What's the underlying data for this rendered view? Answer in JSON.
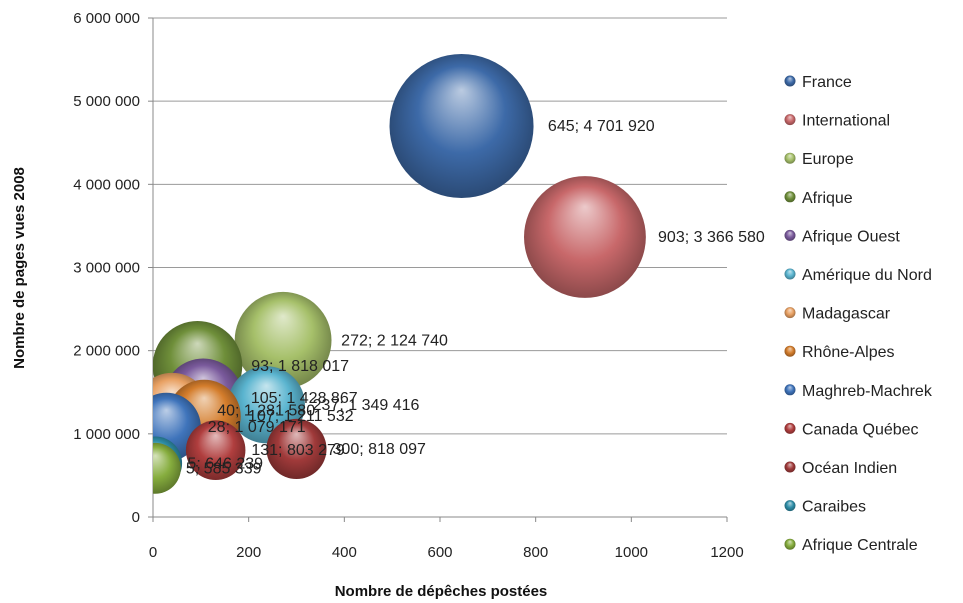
{
  "chart_data": {
    "type": "bubble",
    "xlabel": "Nombre de dépêches postées",
    "ylabel": "Nombre de pages vues 2008",
    "xlim": [
      0,
      1200
    ],
    "ylim": [
      0,
      6000000
    ],
    "x_ticks": [
      0,
      200,
      400,
      600,
      800,
      1000,
      1200
    ],
    "y_ticks": [
      0,
      1000000,
      2000000,
      3000000,
      4000000,
      5000000,
      6000000
    ],
    "x_tick_labels": [
      "0",
      "200",
      "400",
      "600",
      "800",
      "1000",
      "1200"
    ],
    "y_tick_labels": [
      "0",
      "1 000 000",
      "2 000 000",
      "3 000 000",
      "4 000 000",
      "5 000 000",
      "6 000 000"
    ],
    "grid": "horizontal",
    "legend": "right",
    "series": [
      {
        "name": "France",
        "x": 645,
        "y": 4701920,
        "label": "645; 4 701 920",
        "color": "#3d6aa8"
      },
      {
        "name": "International",
        "x": 903,
        "y": 3366580,
        "label": "903; 3 366 580",
        "color": "#c8686a"
      },
      {
        "name": "Europe",
        "x": 272,
        "y": 2124740,
        "label": "272; 2 124 740",
        "color": "#a6c06a"
      },
      {
        "name": "Afrique",
        "x": 93,
        "y": 1818017,
        "label": "93; 1 818 017",
        "color": "#6f8f3a"
      },
      {
        "name": "Afrique Ouest",
        "x": 105,
        "y": 1428867,
        "label": "105; 1 428 867",
        "color": "#7a5a9c"
      },
      {
        "name": "Amérique du Nord",
        "x": 237,
        "y": 1349416,
        "label": "237; 1 349 416",
        "color": "#5ab4cf"
      },
      {
        "name": "Madagascar",
        "x": 40,
        "y": 1281580,
        "label": "40; 1 281 580",
        "color": "#e8a062"
      },
      {
        "name": "Rhône-Alpes",
        "x": 107,
        "y": 1211532,
        "label": "107; 1 211 532",
        "color": "#d47d2c"
      },
      {
        "name": "Maghreb-Machrek",
        "x": 28,
        "y": 1079171,
        "label": "28; 1 079 171",
        "color": "#3f74bb"
      },
      {
        "name": "Canada Québec",
        "x": 131,
        "y": 803279,
        "label": "131; 803 279",
        "color": "#b03e3e"
      },
      {
        "name": "Océan Indien",
        "x": 300,
        "y": 818097,
        "label": "300; 818 097",
        "color": "#a03a3a"
      },
      {
        "name": "Caraibes",
        "x": 5,
        "y": 646239,
        "label": "5; 646 239",
        "color": "#2e8ea8"
      },
      {
        "name": "Afrique Centrale",
        "x": 5,
        "y": 585339,
        "label": "5; 585 339",
        "color": "#86ad3e"
      }
    ]
  }
}
